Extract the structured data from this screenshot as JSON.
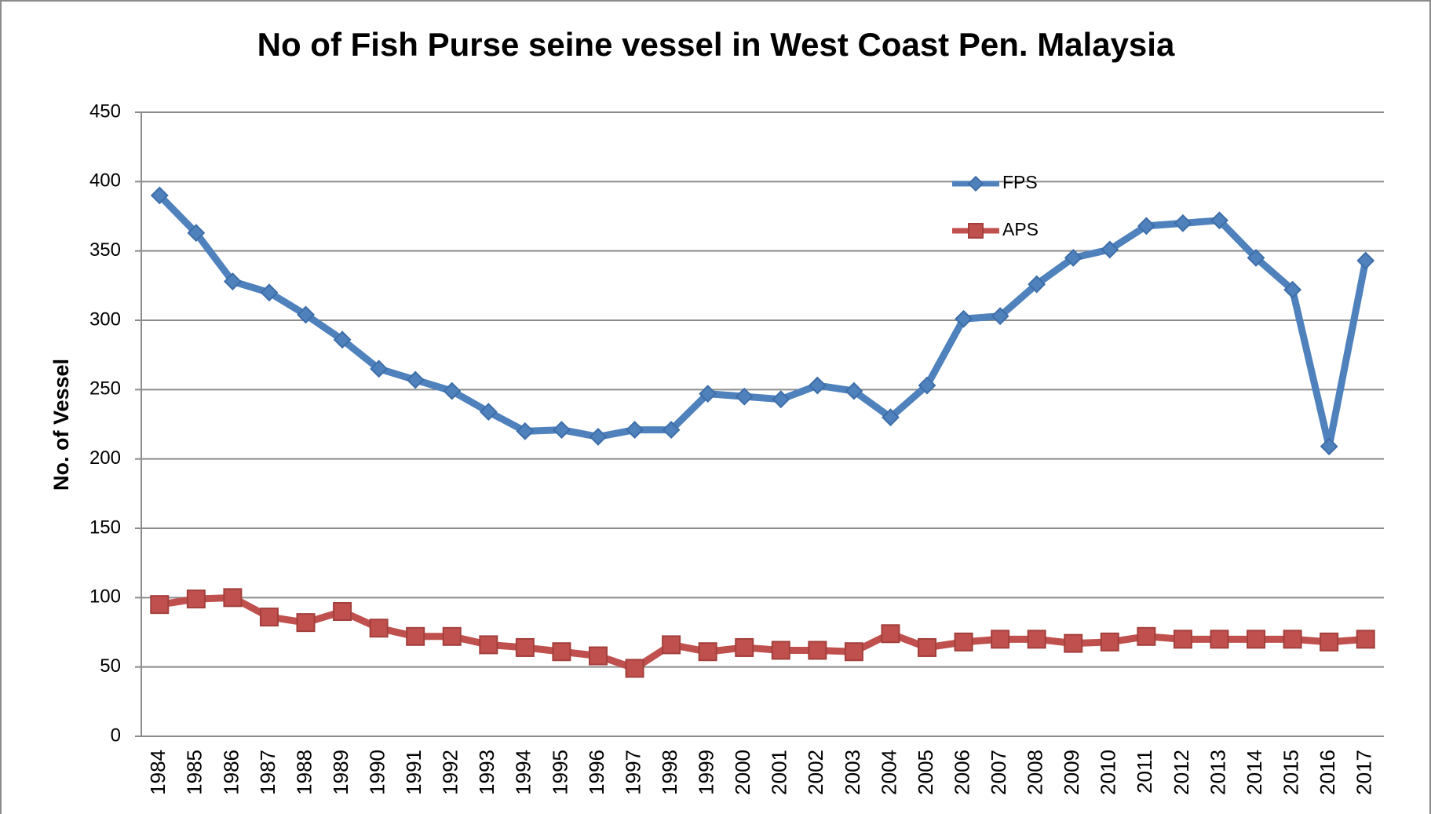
{
  "chart_data": {
    "type": "line",
    "title": "No of Fish Purse seine vessel in West Coast Pen. Malaysia",
    "y_label": "No. of Vessel",
    "categories": [
      "1984",
      "1985",
      "1986",
      "1987",
      "1988",
      "1989",
      "1990",
      "1991",
      "1992",
      "1993",
      "1994",
      "1995",
      "1996",
      "1997",
      "1998",
      "1999",
      "2000",
      "2001",
      "2002",
      "2003",
      "2004",
      "2005",
      "2006",
      "2007",
      "2008",
      "2009",
      "2010",
      "2011",
      "2012",
      "2013",
      "2014",
      "2015",
      "2016",
      "2017"
    ],
    "series": [
      {
        "name": "FPS",
        "color": "#4f81bd",
        "marker": "diamond",
        "values": [
          390,
          363,
          328,
          320,
          304,
          286,
          265,
          257,
          249,
          234,
          220,
          221,
          216,
          221,
          221,
          247,
          245,
          243,
          253,
          249,
          230,
          253,
          301,
          303,
          326,
          345,
          351,
          368,
          370,
          372,
          345,
          322,
          209,
          343
        ]
      },
      {
        "name": "APS",
        "color": "#c0504d",
        "marker": "square",
        "values": [
          95,
          99,
          100,
          86,
          82,
          90,
          78,
          72,
          72,
          66,
          64,
          61,
          58,
          49,
          66,
          61,
          64,
          62,
          62,
          61,
          74,
          64,
          68,
          70,
          70,
          67,
          68,
          72,
          70,
          70,
          70,
          70,
          68,
          70
        ]
      }
    ],
    "ylim": [
      0,
      450
    ],
    "yticks": [
      0,
      50,
      100,
      150,
      200,
      250,
      300,
      350,
      400,
      450
    ],
    "grid": true
  }
}
